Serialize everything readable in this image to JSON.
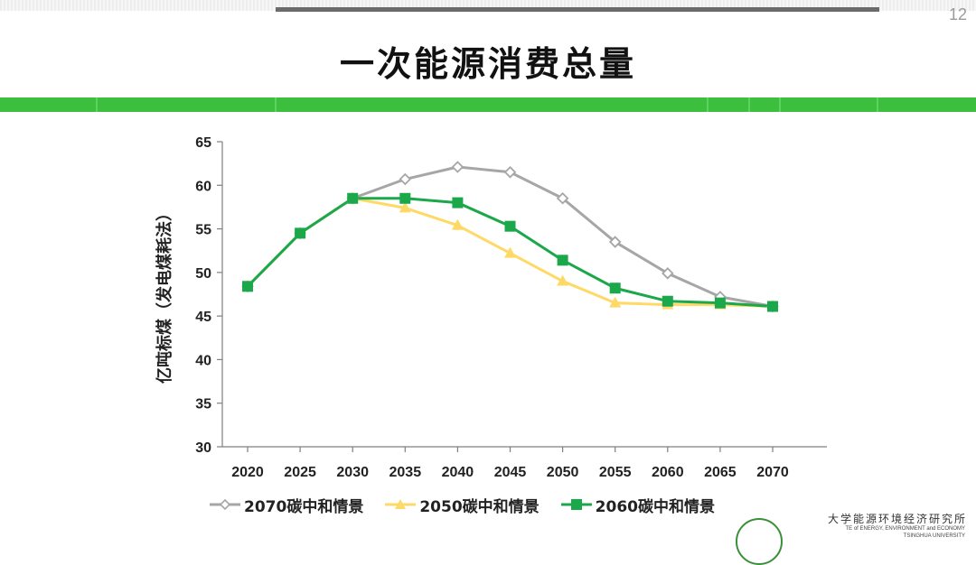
{
  "page": {
    "title": "一次能源消费总量",
    "page_number": "12"
  },
  "footer": {
    "institute_cn": "大学能源环境经济研究所",
    "institute_en_line1": "TE of ENERGY, ENVIRONMENT and ECONOMY",
    "institute_en_line2": "TSINGHUA UNIVERSITY"
  },
  "colors": {
    "accent_green": "#3cbf3c",
    "series_2070": "#a6a6a6",
    "series_2050": "#ffd966",
    "series_2060": "#1aa84a"
  },
  "chart_data": {
    "type": "line",
    "title": "",
    "xlabel": "",
    "ylabel": "亿吨标煤（发电煤耗法）",
    "categories": [
      "2020",
      "2025",
      "2030",
      "2035",
      "2040",
      "2045",
      "2050",
      "2055",
      "2060",
      "2065",
      "2070"
    ],
    "ylim": [
      30,
      65
    ],
    "yticks": [
      30,
      35,
      40,
      45,
      50,
      55,
      60,
      65
    ],
    "grid": false,
    "legend_position": "bottom",
    "series": [
      {
        "name": "2070碳中和情景",
        "marker": "diamond",
        "color": "#a6a6a6",
        "values": [
          48.4,
          54.5,
          58.5,
          60.7,
          62.1,
          61.5,
          58.5,
          53.5,
          49.9,
          47.2,
          46.1
        ]
      },
      {
        "name": "2050碳中和情景",
        "marker": "triangle",
        "color": "#ffd966",
        "values": [
          48.4,
          54.5,
          58.5,
          57.4,
          55.4,
          52.2,
          49.0,
          46.5,
          46.3,
          46.3,
          46.1
        ]
      },
      {
        "name": "2060碳中和情景",
        "marker": "square",
        "color": "#1aa84a",
        "values": [
          48.4,
          54.5,
          58.5,
          58.5,
          58.0,
          55.3,
          51.4,
          48.2,
          46.7,
          46.5,
          46.1
        ]
      }
    ]
  }
}
